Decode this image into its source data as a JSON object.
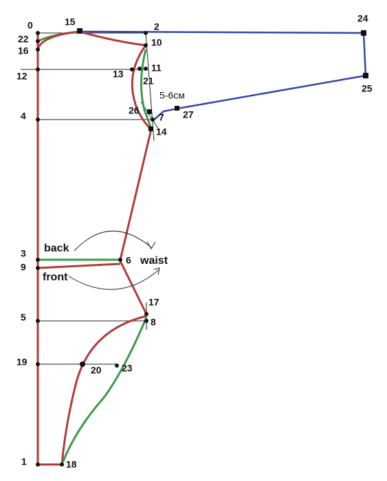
{
  "points": [
    {
      "label": "0"
    },
    {
      "label": "15"
    },
    {
      "label": "2"
    },
    {
      "label": "24"
    },
    {
      "label": "22"
    },
    {
      "label": "16"
    },
    {
      "label": "10"
    },
    {
      "label": "12"
    },
    {
      "label": "13"
    },
    {
      "label": "11"
    },
    {
      "label": "21"
    },
    {
      "label": "4"
    },
    {
      "label": "26"
    },
    {
      "label": "7"
    },
    {
      "label": "27"
    },
    {
      "label": "14"
    },
    {
      "label": "25"
    },
    {
      "label": "3"
    },
    {
      "label": "6"
    },
    {
      "label": "9"
    },
    {
      "label": "5"
    },
    {
      "label": "17"
    },
    {
      "label": "8"
    },
    {
      "label": "19"
    },
    {
      "label": "20"
    },
    {
      "label": "23"
    },
    {
      "label": "1"
    },
    {
      "label": "18"
    }
  ],
  "annotations": {
    "allowance": "5-6см",
    "back": "back",
    "front": "front",
    "waist": "waist"
  }
}
